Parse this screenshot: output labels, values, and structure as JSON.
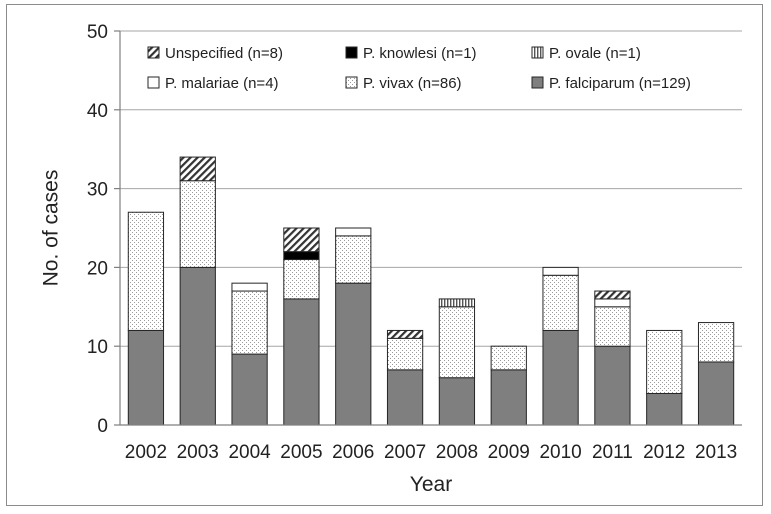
{
  "chart_data": {
    "type": "bar",
    "stacked": true,
    "title": "",
    "xlabel": "Year",
    "ylabel": "No. of cases",
    "ylim": [
      0,
      50
    ],
    "yticks": [
      0,
      10,
      20,
      30,
      40,
      50
    ],
    "grid": "horizontal",
    "legend_position": "top",
    "categories": [
      "2002",
      "2003",
      "2004",
      "2005",
      "2006",
      "2007",
      "2008",
      "2009",
      "2010",
      "2011",
      "2012",
      "2013"
    ],
    "series": [
      {
        "name": "P. falciparum (n=129)",
        "pattern": "solid-gray",
        "color": "#7f7f7f",
        "values": [
          12,
          20,
          9,
          16,
          18,
          7,
          6,
          7,
          12,
          10,
          4,
          8
        ]
      },
      {
        "name": "P. vivax (n=86)",
        "pattern": "dotted",
        "color": "#ffffff",
        "values": [
          15,
          11,
          8,
          5,
          6,
          4,
          9,
          3,
          7,
          5,
          8,
          5
        ]
      },
      {
        "name": "P. malariae (n=4)",
        "pattern": "white",
        "color": "#ffffff",
        "values": [
          0,
          0,
          1,
          0,
          1,
          0,
          0,
          0,
          1,
          1,
          0,
          0
        ]
      },
      {
        "name": "P. ovale (n=1)",
        "pattern": "vertical-lines",
        "color": "#bdbdbd",
        "values": [
          0,
          0,
          0,
          0,
          0,
          0,
          1,
          0,
          0,
          0,
          0,
          0
        ]
      },
      {
        "name": "P. knowlesi (n=1)",
        "pattern": "solid-black",
        "color": "#000000",
        "values": [
          0,
          0,
          0,
          1,
          0,
          0,
          0,
          0,
          0,
          0,
          0,
          0
        ]
      },
      {
        "name": "Unspecified (n=8)",
        "pattern": "diagonal-hatch",
        "color": "#444444",
        "values": [
          0,
          3,
          0,
          3,
          0,
          1,
          0,
          0,
          0,
          1,
          0,
          0
        ]
      }
    ],
    "legend_order": [
      "Unspecified (n=8)",
      "P. knowlesi (n=1)",
      "P. ovale (n=1)",
      "P. malariae (n=4)",
      "P. vivax (n=86)",
      "P. falciparum (n=129)"
    ]
  }
}
